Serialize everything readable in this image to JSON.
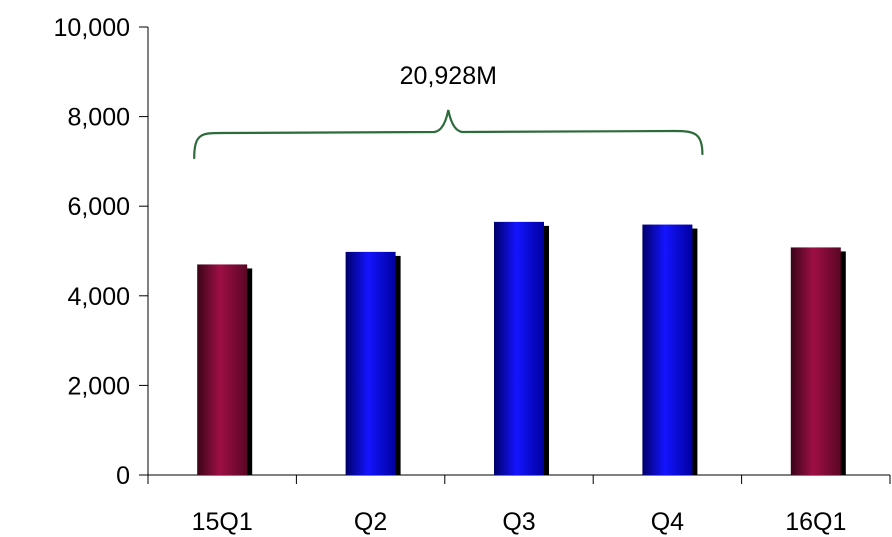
{
  "chart_data": {
    "type": "bar",
    "categories": [
      "15Q1",
      "Q2",
      "Q3",
      "Q4",
      "16Q1"
    ],
    "values": [
      4700,
      4980,
      5650,
      5590,
      5080
    ],
    "bar_colors": [
      "#8B0A3A",
      "#0A0AF0",
      "#0A0AF0",
      "#0A0AF0",
      "#8B0A3A"
    ],
    "ylim": [
      0,
      10000
    ],
    "yticks": [
      0,
      2000,
      4000,
      6000,
      8000,
      10000
    ],
    "ytick_labels": [
      "0",
      "2,000",
      "4,000",
      "6,000",
      "8,000",
      "10,000"
    ],
    "grid": false,
    "legend": "none",
    "annotation": {
      "text": "20,928M",
      "spans_categories": [
        "15Q1",
        "Q4"
      ],
      "color": "#2E6B3A"
    }
  }
}
